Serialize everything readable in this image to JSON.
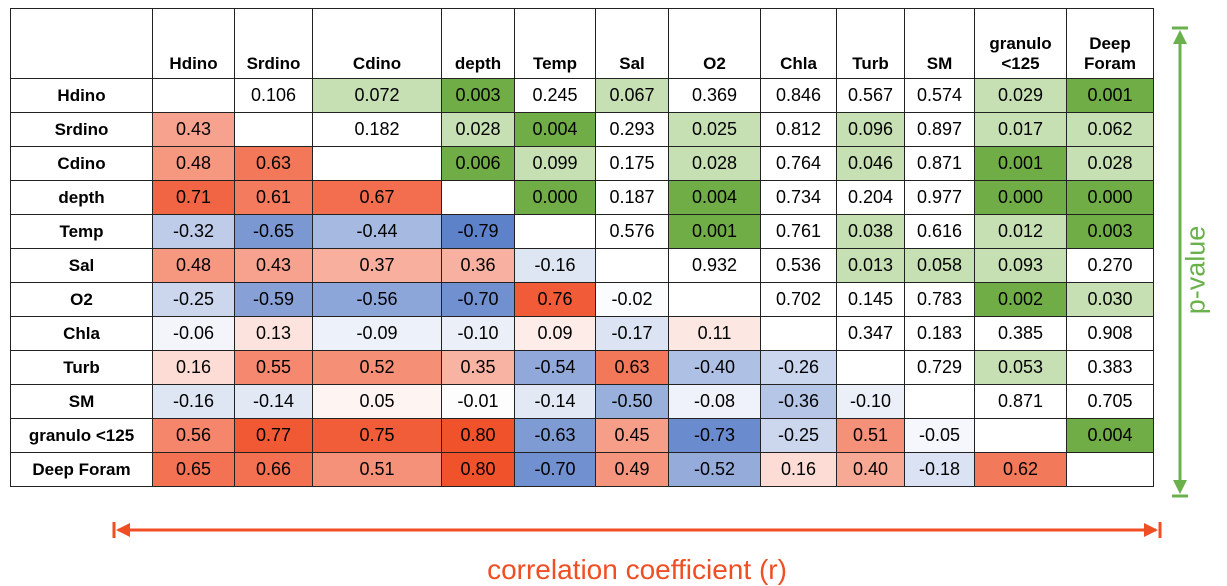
{
  "table": {
    "columns": [
      "",
      "Hdino",
      "Srdino",
      "Cdino",
      "depth",
      "Temp",
      "Sal",
      "O2",
      "Chla",
      "Turb",
      "SM",
      "granulo <125",
      "Deep Foram"
    ],
    "rows": [
      [
        "Hdino",
        null,
        "0.106",
        "0.072",
        "0.003",
        "0.245",
        "0.067",
        "0.369",
        "0.846",
        "0.567",
        "0.574",
        "0.029",
        "0.001"
      ],
      [
        "Srdino",
        "0.43",
        null,
        "0.182",
        "0.028",
        "0.004",
        "0.293",
        "0.025",
        "0.812",
        "0.096",
        "0.897",
        "0.017",
        "0.062"
      ],
      [
        "Cdino",
        "0.48",
        "0.63",
        null,
        "0.006",
        "0.099",
        "0.175",
        "0.028",
        "0.764",
        "0.046",
        "0.871",
        "0.001",
        "0.028"
      ],
      [
        "depth",
        "0.71",
        "0.61",
        "0.67",
        null,
        "0.000",
        "0.187",
        "0.004",
        "0.734",
        "0.204",
        "0.977",
        "0.000",
        "0.000"
      ],
      [
        "Temp",
        "-0.32",
        "-0.65",
        "-0.44",
        "-0.79",
        null,
        "0.576",
        "0.001",
        "0.761",
        "0.038",
        "0.616",
        "0.012",
        "0.003"
      ],
      [
        "Sal",
        "0.48",
        "0.43",
        "0.37",
        "0.36",
        "-0.16",
        null,
        "0.932",
        "0.536",
        "0.013",
        "0.058",
        "0.093",
        "0.270"
      ],
      [
        "O2",
        "-0.25",
        "-0.59",
        "-0.56",
        "-0.70",
        "0.76",
        "-0.02",
        null,
        "0.702",
        "0.145",
        "0.783",
        "0.002",
        "0.030"
      ],
      [
        "Chla",
        "-0.06",
        "0.13",
        "-0.09",
        "-0.10",
        "0.09",
        "-0.17",
        "0.11",
        null,
        "0.347",
        "0.183",
        "0.385",
        "0.908"
      ],
      [
        "Turb",
        "0.16",
        "0.55",
        "0.52",
        "0.35",
        "-0.54",
        "0.63",
        "-0.40",
        "-0.26",
        null,
        "0.729",
        "0.053",
        "0.383"
      ],
      [
        "SM",
        "-0.16",
        "-0.14",
        "0.05",
        "-0.01",
        "-0.14",
        "-0.50",
        "-0.08",
        "-0.36",
        "-0.10",
        null,
        "0.871",
        "0.705"
      ],
      [
        "granulo <125",
        "0.56",
        "0.77",
        "0.75",
        "0.80",
        "-0.63",
        "0.45",
        "-0.73",
        "-0.25",
        "0.51",
        "-0.05",
        null,
        "0.004"
      ],
      [
        "Deep Foram",
        "0.65",
        "0.66",
        "0.51",
        "0.80",
        "-0.70",
        "0.49",
        "-0.52",
        "0.16",
        "0.40",
        "-0.18",
        "0.62",
        null
      ]
    ]
  },
  "p_value_label": "p-value",
  "correlation_label": "correlation coefficient (r)"
}
